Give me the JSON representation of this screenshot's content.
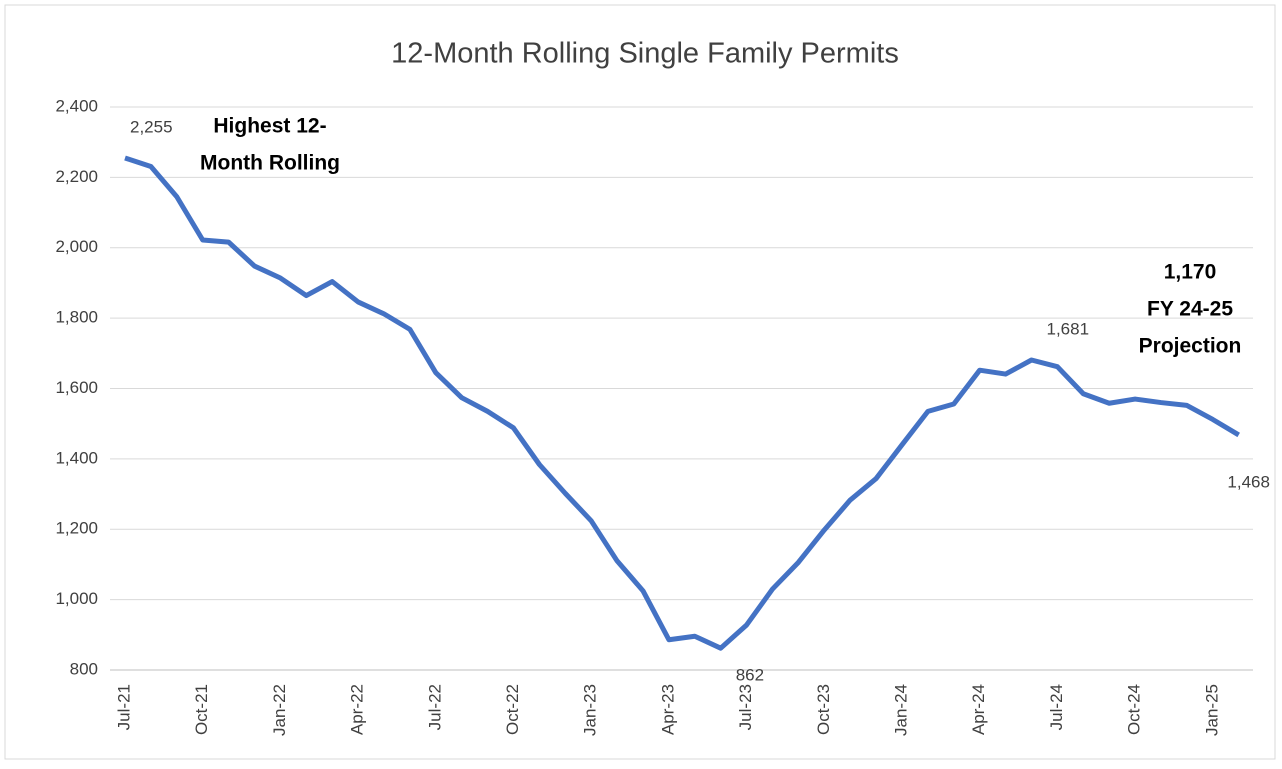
{
  "chart_data": {
    "type": "line",
    "title": "12-Month Rolling Single Family Permits",
    "categories": [
      "Jul-21",
      null,
      null,
      "Oct-21",
      null,
      null,
      "Jan-22",
      null,
      null,
      "Apr-22",
      null,
      null,
      "Jul-22",
      null,
      null,
      "Oct-22",
      null,
      null,
      "Jan-23",
      null,
      null,
      "Apr-23",
      null,
      null,
      "Jul-23",
      null,
      null,
      "Oct-23",
      null,
      null,
      "Jan-24",
      null,
      null,
      "Apr-24",
      null,
      null,
      "Jul-24",
      null,
      null,
      "Oct-24",
      null,
      null,
      "Jan-25",
      null
    ],
    "series": [
      {
        "name": "12-Month Rolling Single Family Permits",
        "color": "#4472c4",
        "values": [
          2255,
          2231,
          2145,
          2022,
          2016,
          1948,
          1914,
          1864,
          1904,
          1846,
          1812,
          1768,
          1645,
          1574,
          1535,
          1488,
          1384,
          1302,
          1224,
          1110,
          1025,
          886,
          896,
          862,
          928,
          1030,
          1106,
          1198,
          1283,
          1344,
          1440,
          1535,
          1556,
          1652,
          1641,
          1681,
          1662,
          1585,
          1558,
          1570,
          1560,
          1552,
          1512,
          1468
        ],
        "value_labels": [
          "2,255",
          null,
          null,
          null,
          null,
          null,
          null,
          null,
          null,
          null,
          null,
          null,
          null,
          null,
          null,
          null,
          null,
          null,
          null,
          null,
          null,
          null,
          null,
          "862",
          null,
          null,
          null,
          null,
          null,
          null,
          null,
          null,
          null,
          null,
          null,
          "1,681",
          null,
          null,
          null,
          null,
          null,
          null,
          null,
          "1,468"
        ]
      }
    ],
    "ylim": [
      800,
      2400
    ],
    "yticks": [
      800,
      {
        "value": 1000,
        "label": "1,000"
      },
      {
        "value": 1200,
        "label": "1,200"
      },
      {
        "value": 1400,
        "label": "1,400"
      },
      {
        "value": 1600,
        "label": "1,600"
      },
      {
        "value": 1800,
        "label": "1,800"
      },
      {
        "value": 2000,
        "label": "2,000"
      },
      {
        "value": 2200,
        "label": "2,200"
      },
      {
        "value": 2400,
        "label": "2,400"
      }
    ],
    "grid": true,
    "annotations": [
      {
        "lines": [
          "Highest 12-",
          "Month Rolling"
        ]
      },
      {
        "lines": [
          "1,170",
          "FY 24-25",
          "Projection"
        ]
      }
    ]
  }
}
